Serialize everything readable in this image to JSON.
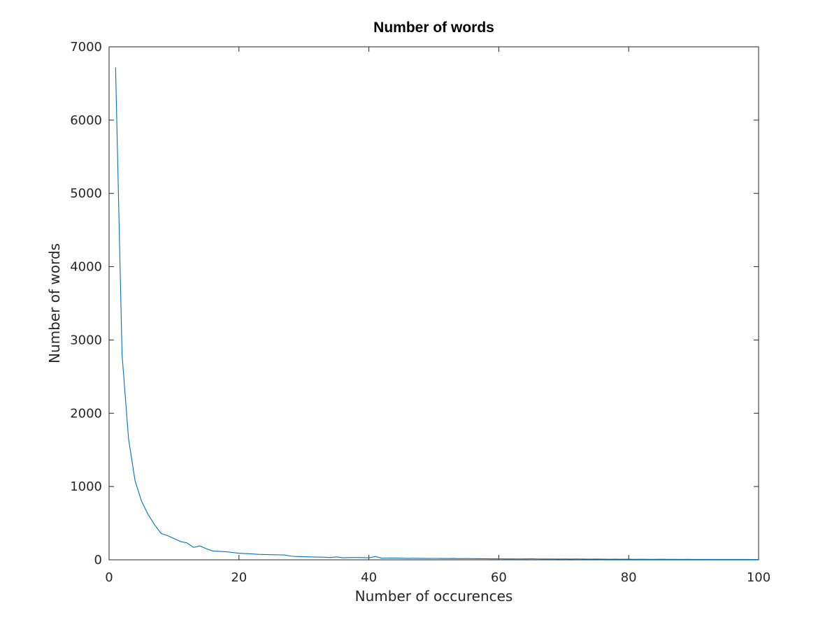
{
  "chart_data": {
    "type": "line",
    "title": "Number of words",
    "xlabel": "Number of occurences",
    "ylabel": "Number of words",
    "xlim": [
      0,
      100
    ],
    "ylim": [
      0,
      7000
    ],
    "xticks": [
      0,
      20,
      40,
      60,
      80,
      100
    ],
    "yticks": [
      0,
      1000,
      2000,
      3000,
      4000,
      5000,
      6000,
      7000
    ],
    "grid": false,
    "series": [
      {
        "name": "Number of words",
        "color": "#0072bd",
        "x": [
          1,
          2,
          3,
          4,
          5,
          6,
          7,
          8,
          9,
          10,
          11,
          12,
          13,
          14,
          15,
          16,
          17,
          18,
          19,
          20,
          21,
          22,
          23,
          24,
          25,
          26,
          27,
          28,
          29,
          30,
          31,
          32,
          33,
          34,
          35,
          36,
          37,
          38,
          39,
          40,
          41,
          42,
          43,
          44,
          45,
          46,
          47,
          48,
          49,
          50,
          51,
          52,
          53,
          54,
          55,
          56,
          57,
          58,
          59,
          60,
          61,
          62,
          63,
          64,
          65,
          66,
          67,
          68,
          69,
          70,
          71,
          72,
          73,
          74,
          75,
          76,
          77,
          78,
          79,
          80,
          81,
          82,
          83,
          84,
          85,
          86,
          87,
          88,
          89,
          90,
          91,
          92,
          93,
          94,
          95,
          96,
          97,
          98,
          99,
          100
        ],
        "values": [
          6720,
          2800,
          1650,
          1080,
          800,
          620,
          480,
          360,
          330,
          290,
          250,
          230,
          170,
          190,
          150,
          120,
          115,
          110,
          100,
          90,
          85,
          80,
          75,
          72,
          70,
          68,
          66,
          50,
          45,
          42,
          40,
          38,
          36,
          30,
          40,
          28,
          30,
          32,
          30,
          28,
          45,
          22,
          25,
          24,
          22,
          20,
          21,
          20,
          18,
          19,
          18,
          17,
          18,
          16,
          17,
          16,
          15,
          15,
          14,
          14,
          13,
          13,
          12,
          13,
          14,
          12,
          11,
          12,
          10,
          11,
          10,
          12,
          10,
          9,
          10,
          9,
          8,
          9,
          8,
          9,
          7,
          8,
          7,
          7,
          8,
          7,
          7,
          6,
          7,
          6,
          6,
          6,
          5,
          6,
          5,
          5,
          5,
          5,
          4,
          4
        ]
      }
    ]
  }
}
